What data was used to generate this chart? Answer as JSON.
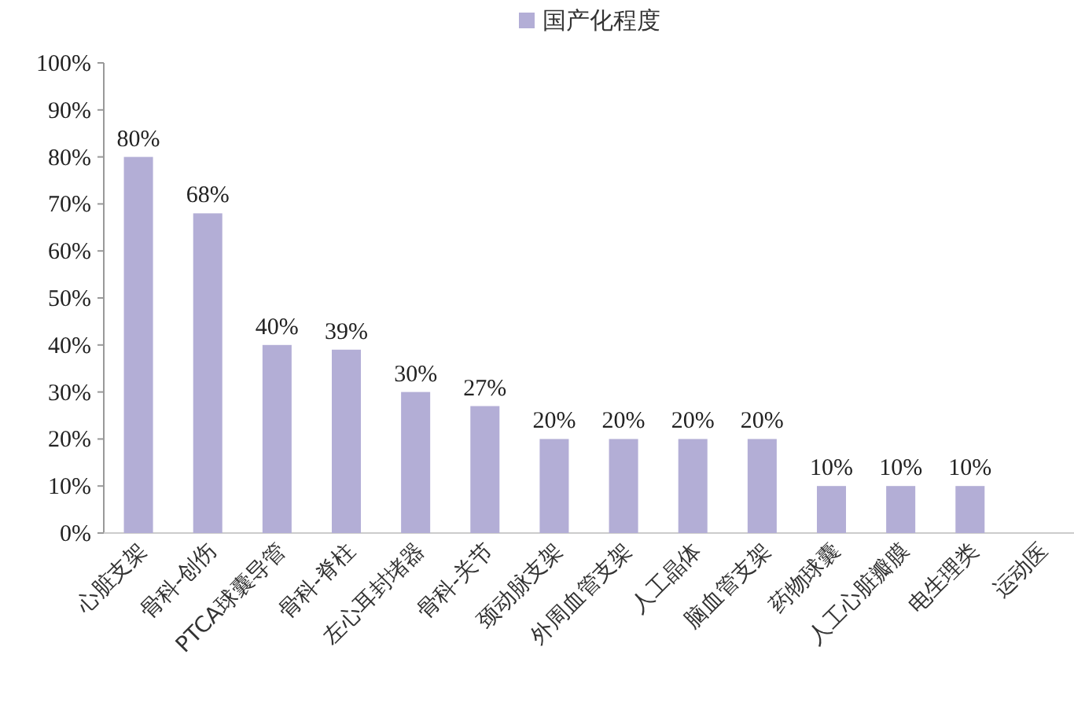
{
  "chart_data": {
    "type": "bar",
    "categories": [
      "心脏支架",
      "骨科-创伤",
      "PTCA球囊导管",
      "骨科-脊柱",
      "左心耳封堵器",
      "骨科-关节",
      "颈动脉支架",
      "外周血管支架",
      "人工晶体",
      "脑血管支架",
      "药物球囊",
      "人工心脏瓣膜",
      "电生理类",
      "运动医"
    ],
    "series": [
      {
        "name": "国产化程度",
        "color": "#b3aed6",
        "values": [
          80,
          68,
          40,
          39,
          30,
          27,
          20,
          20,
          20,
          20,
          10,
          10,
          10,
          null
        ],
        "value_labels": [
          "80%",
          "68%",
          "40%",
          "39%",
          "30%",
          "27%",
          "20%",
          "20%",
          "20%",
          "20%",
          "10%",
          "10%",
          "10%",
          null
        ]
      }
    ],
    "ylim": [
      0,
      100
    ],
    "yticks": [
      {
        "value": 0,
        "label": "0%"
      },
      {
        "value": 10,
        "label": "10%"
      },
      {
        "value": 20,
        "label": "20%"
      },
      {
        "value": 30,
        "label": "30%"
      },
      {
        "value": 40,
        "label": "40%"
      },
      {
        "value": 50,
        "label": "50%"
      },
      {
        "value": 60,
        "label": "60%"
      },
      {
        "value": 70,
        "label": "70%"
      },
      {
        "value": 80,
        "label": "80%"
      },
      {
        "value": 90,
        "label": "90%"
      },
      {
        "value": 100,
        "label": "100%"
      }
    ],
    "grid": false,
    "legend": "top"
  }
}
